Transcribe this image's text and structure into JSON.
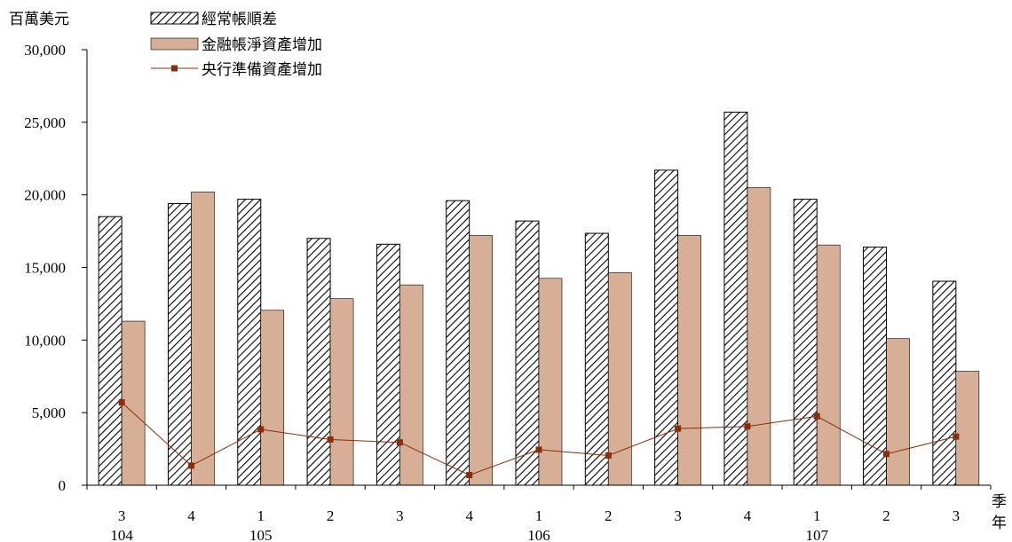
{
  "chart_data": {
    "type": "bar",
    "ylabel": "百萬美元",
    "xlabel_quarter": "季",
    "xlabel_year": "年",
    "ylim": [
      0,
      30000
    ],
    "yticks": [
      "0",
      "5,000",
      "10,000",
      "15,000",
      "20,000",
      "25,000",
      "30,000"
    ],
    "categories": [
      "3",
      "4",
      "1",
      "2",
      "3",
      "4",
      "1",
      "2",
      "3",
      "4",
      "1",
      "2",
      "3"
    ],
    "years": [
      {
        "label": "104",
        "index": 0
      },
      {
        "label": "105",
        "index": 2
      },
      {
        "label": "106",
        "index": 6
      },
      {
        "label": "107",
        "index": 10
      }
    ],
    "legend_position": "top-left",
    "series": [
      {
        "name": "經常帳順差",
        "type": "bar",
        "pattern": "hatched",
        "color": "#000000",
        "values": [
          18500,
          19400,
          19700,
          17000,
          16600,
          19600,
          18200,
          17350,
          21700,
          25700,
          19700,
          16400,
          14050
        ]
      },
      {
        "name": "金融帳淨資產增加",
        "type": "bar",
        "color": "#d7ae96",
        "values": [
          11300,
          20200,
          12050,
          12850,
          13800,
          17200,
          14250,
          14650,
          17200,
          20500,
          16550,
          10100,
          7850
        ]
      },
      {
        "name": "央行準備資產增加",
        "type": "line",
        "color": "#8b2d0a",
        "values": [
          5700,
          1350,
          3850,
          3150,
          2950,
          700,
          2450,
          2050,
          3900,
          4050,
          4750,
          2150,
          3350
        ]
      }
    ]
  }
}
